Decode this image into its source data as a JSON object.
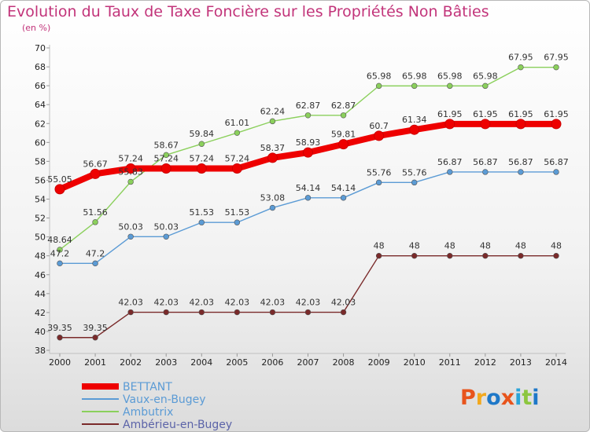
{
  "title": "Evolution du Taux de Taxe Foncière sur les Propriétés Non Bâties",
  "subtitle": "(en %)",
  "logo": {
    "text": "Proxiti",
    "colors": [
      "#e8541c",
      "#f2a81d",
      "#1e78c8",
      "#e8541c",
      "#2aa4d8",
      "#8cc63f",
      "#1e78c8"
    ]
  },
  "chart_data": {
    "type": "line",
    "title": "Evolution du Taux de Taxe Foncière sur les Propriétés Non Bâties",
    "ylabel": "(en %)",
    "xlabel": "",
    "x": [
      "2000",
      "2001",
      "2002",
      "2003",
      "2004",
      "2005",
      "2006",
      "2007",
      "2008",
      "2009",
      "2010",
      "2011",
      "2012",
      "2013",
      "2014"
    ],
    "ylim": [
      38,
      70
    ],
    "yticks": [
      38,
      40,
      42,
      44,
      46,
      48,
      50,
      52,
      54,
      56,
      58,
      60,
      62,
      64,
      66,
      68,
      70
    ],
    "grid": false,
    "legend_position": "bottom-left",
    "series": [
      {
        "name": "BETTANT",
        "color": "#ee0000",
        "values": [
          55.05,
          56.67,
          57.24,
          57.24,
          57.24,
          57.24,
          58.37,
          58.93,
          59.81,
          60.7,
          61.34,
          61.95,
          61.95,
          61.95,
          61.95
        ],
        "labels": [
          "55.05",
          "56.67",
          "57.24",
          "57.24",
          "57.24",
          "57.24",
          "58.37",
          "58.93",
          "59.81",
          "60.7",
          "61.34",
          "61.95",
          "61.95",
          "61.95",
          "61.95"
        ]
      },
      {
        "name": "Vaux-en-Bugey",
        "color": "#5b9bd5",
        "values": [
          47.2,
          47.2,
          50.03,
          50.03,
          51.53,
          51.53,
          53.08,
          54.14,
          54.14,
          55.76,
          55.76,
          56.87,
          56.87,
          56.87,
          56.87
        ],
        "labels": [
          "47.2",
          "47.2",
          "50.03",
          "50.03",
          "51.53",
          "51.53",
          "53.08",
          "54.14",
          "54.14",
          "55.76",
          "55.76",
          "56.87",
          "56.87",
          "56.87",
          "56.87"
        ]
      },
      {
        "name": "Ambutrix",
        "color": "#8bd05c",
        "values": [
          48.64,
          51.56,
          55.83,
          58.67,
          59.84,
          61.01,
          62.24,
          62.87,
          62.87,
          65.98,
          65.98,
          65.98,
          65.98,
          67.95,
          67.95
        ],
        "labels": [
          "48.64",
          "51.56",
          "55.83",
          "58.67",
          "59.84",
          "61.01",
          "62.24",
          "62.87",
          "62.87",
          "65.98",
          "65.98",
          "65.98",
          "65.98",
          "67.95",
          "67.95"
        ]
      },
      {
        "name": "Ambérieu-en-Bugey",
        "color": "#7a2a2a",
        "values": [
          39.35,
          39.35,
          42.03,
          42.03,
          42.03,
          42.03,
          42.03,
          42.03,
          42.03,
          48,
          48,
          48,
          48,
          48,
          48
        ],
        "labels": [
          "39.35",
          "39.35",
          "42.03",
          "42.03",
          "42.03",
          "42.03",
          "42.03",
          "42.03",
          "42.03",
          "48",
          "48",
          "48",
          "48",
          "48",
          "48"
        ]
      }
    ]
  }
}
